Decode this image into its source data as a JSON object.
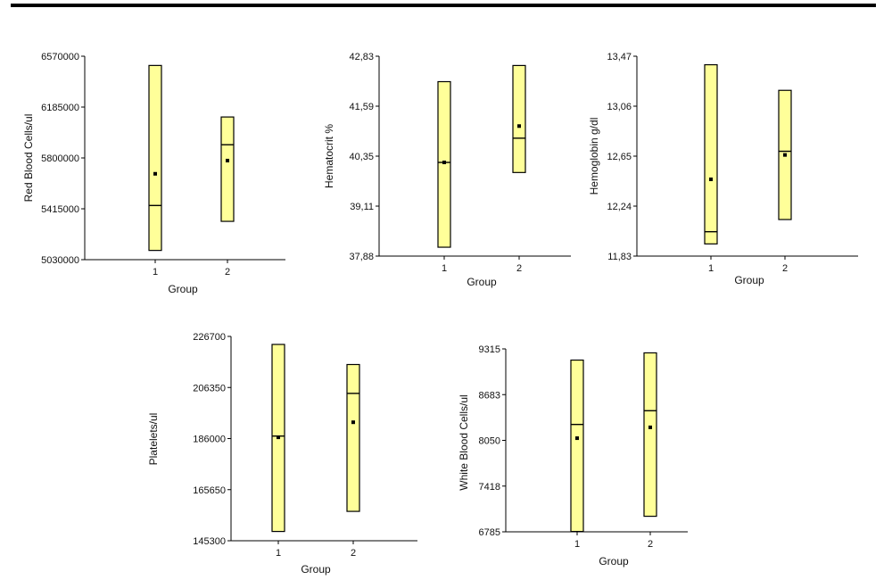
{
  "colors": {
    "box_fill": "#ffff99",
    "box_stroke": "#000000",
    "axis": "#000000",
    "top_rule": "#000000"
  },
  "chart_data": [
    {
      "type": "box",
      "id": "rbc",
      "ylabel": "Red Blood Cells/ul",
      "xlabel": "Group",
      "categories": [
        "1",
        "2"
      ],
      "yticks": [
        "5030000",
        "5415000",
        "5800000",
        "6185000",
        "6570000"
      ],
      "ylim": [
        5030000,
        6570000
      ],
      "boxes": [
        {
          "group": "1",
          "low": 5100000,
          "high": 6500000,
          "median": 5440000,
          "mean": 5680000
        },
        {
          "group": "2",
          "low": 5320000,
          "high": 6110000,
          "median": 5900000,
          "mean": 5780000
        }
      ]
    },
    {
      "type": "box",
      "id": "hct",
      "ylabel": "Hematocrit %",
      "xlabel": "Group",
      "categories": [
        "1",
        "2"
      ],
      "yticks": [
        "37,88",
        "39,11",
        "40,35",
        "41,59",
        "42,83"
      ],
      "ylim": [
        37.88,
        42.83
      ],
      "boxes": [
        {
          "group": "1",
          "low": 38.1,
          "high": 42.2,
          "median": 40.2,
          "mean": 40.2
        },
        {
          "group": "2",
          "low": 39.95,
          "high": 42.6,
          "median": 40.8,
          "mean": 41.1
        }
      ]
    },
    {
      "type": "box",
      "id": "hgb",
      "ylabel": "Hemoglobin g/dl",
      "xlabel": "Group",
      "categories": [
        "1",
        "2"
      ],
      "yticks": [
        "11,83",
        "12,24",
        "12,65",
        "13,06",
        "13,47"
      ],
      "ylim": [
        11.83,
        13.47
      ],
      "boxes": [
        {
          "group": "1",
          "low": 11.93,
          "high": 13.4,
          "median": 12.03,
          "mean": 12.46
        },
        {
          "group": "2",
          "low": 12.13,
          "high": 13.19,
          "median": 12.69,
          "mean": 12.66
        }
      ]
    },
    {
      "type": "box",
      "id": "plt",
      "ylabel": "Platelets/ul",
      "xlabel": "Group",
      "categories": [
        "1",
        "2"
      ],
      "yticks": [
        "145300",
        "165650",
        "186000",
        "206350",
        "226700"
      ],
      "ylim": [
        145300,
        226700
      ],
      "boxes": [
        {
          "group": "1",
          "low": 149000,
          "high": 223500,
          "median": 187000,
          "mean": 186500
        },
        {
          "group": "2",
          "low": 157000,
          "high": 215500,
          "median": 204000,
          "mean": 192500
        }
      ]
    },
    {
      "type": "box",
      "id": "wbc",
      "ylabel": "White Blood Cells/ul",
      "xlabel": "Group",
      "categories": [
        "1",
        "2"
      ],
      "yticks": [
        "6785",
        "7418",
        "8050",
        "8683",
        "9315"
      ],
      "ylim": [
        6785,
        9315
      ],
      "boxes": [
        {
          "group": "1",
          "low": 6790,
          "high": 9160,
          "median": 8270,
          "mean": 8080
        },
        {
          "group": "2",
          "low": 7000,
          "high": 9260,
          "median": 8460,
          "mean": 8230
        }
      ]
    }
  ]
}
